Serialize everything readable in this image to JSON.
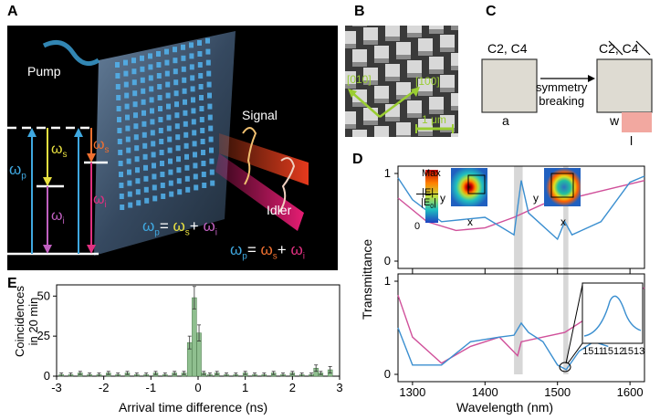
{
  "figure": {
    "panel_letters": [
      "A",
      "B",
      "C",
      "D",
      "E"
    ]
  },
  "panel_a": {
    "pump_label": "Pump",
    "signal_label": "Signal",
    "idler_label": "Idler",
    "omega_p": "ω",
    "omega_p_sub": "p",
    "omega_s": "ω",
    "omega_s_sub": "s",
    "omega_i": "ω",
    "omega_i_sub": "i",
    "eq1": [
      "ω",
      "p",
      "= ",
      "ω",
      "s",
      "+ ",
      "ω",
      "i"
    ],
    "eq2": [
      "ω",
      "p",
      "= ",
      "ω",
      "s",
      "+ ",
      "ω",
      "i"
    ],
    "colors": {
      "background": "#000000",
      "pump": "#3fa8e0",
      "signal": "#f07030",
      "idler": "#e03080",
      "yellow": "#e8e040",
      "purple": "#c060c0"
    }
  },
  "panel_b": {
    "dir1": "[010]",
    "dir2": "[100]",
    "scale": "1 μm",
    "colors": {
      "annotation": "#9acd32"
    }
  },
  "panel_c": {
    "left_symmetry": "C2, C4",
    "right_symmetry": "C2, C4",
    "arrow_label_line1": "symmetry",
    "arrow_label_line2": "breaking",
    "label_a": "a",
    "label_w": "w",
    "label_l": "l",
    "colors": {
      "square": "#dedbd2",
      "notch": "#f2a8a0"
    }
  },
  "panel_d": {
    "ylabel": "Transmittance",
    "xlabel": "Wavelength (nm)",
    "top_yticks": [
      "1",
      "0"
    ],
    "bottom_yticks": [
      "1",
      "0"
    ],
    "xticks": [
      "1300",
      "1400",
      "1500",
      "1600"
    ],
    "colorbar": {
      "max": "Max",
      "label_num": "|E|",
      "label_den": "|E",
      "label_den_sub": "0",
      "label_den_end": "|",
      "min": "0"
    },
    "axis_x": "x",
    "axis_y": "y",
    "inset_xticks": [
      "1511",
      "1512",
      "1513"
    ],
    "colors": {
      "blue": "#3b8fd0",
      "pink": "#d0509a",
      "band": "#bdbdbd"
    }
  },
  "panel_e": {
    "ylabel_line1": "Coincidences",
    "ylabel_line2": "in 20 min",
    "xlabel": "Arrival time difference (ns)",
    "yticks": [
      "0",
      "25",
      "50"
    ],
    "xticks": [
      "-3",
      "-2",
      "-1",
      "0",
      "1",
      "2",
      "3"
    ],
    "colors": {
      "bar": "#8fbf8f",
      "edge": "#4a7a4a"
    }
  },
  "chart_data": [
    {
      "type": "line",
      "title": "",
      "xlabel": "Wavelength (nm)",
      "ylabel": "Transmittance",
      "xlim": [
        1280,
        1620
      ],
      "ylim": [
        0,
        1
      ],
      "series": [
        {
          "name": "simulated symmetric (pink)",
          "x": [
            1280,
            1320,
            1360,
            1400,
            1440,
            1480,
            1520,
            1560,
            1600,
            1620
          ],
          "y": [
            0.72,
            0.45,
            0.35,
            0.38,
            0.5,
            0.65,
            0.72,
            0.8,
            0.88,
            0.92
          ]
        },
        {
          "name": "simulated broken (blue)",
          "x": [
            1280,
            1300,
            1340,
            1400,
            1440,
            1450,
            1460,
            1500,
            1510,
            1520,
            1560,
            1600,
            1620
          ],
          "y": [
            0.95,
            0.7,
            0.45,
            0.5,
            0.3,
            0.92,
            0.55,
            0.25,
            0.45,
            0.3,
            0.45,
            0.9,
            0.97
          ]
        }
      ]
    },
    {
      "type": "line",
      "title": "",
      "xlabel": "Wavelength (nm)",
      "ylabel": "Transmittance",
      "xlim": [
        1280,
        1620
      ],
      "ylim": [
        0,
        1
      ],
      "series": [
        {
          "name": "measured (pink)",
          "x": [
            1280,
            1300,
            1340,
            1380,
            1420,
            1445,
            1450,
            1480,
            1510,
            1540,
            1580,
            1620
          ],
          "y": [
            0.85,
            0.4,
            0.12,
            0.3,
            0.4,
            0.2,
            0.35,
            0.4,
            0.45,
            0.6,
            0.78,
            0.93
          ]
        },
        {
          "name": "measured (blue)",
          "x": [
            1280,
            1300,
            1340,
            1380,
            1420,
            1440,
            1450,
            1460,
            1480,
            1500,
            1512,
            1530,
            1550,
            1570
          ],
          "y": [
            0.5,
            0.1,
            0.1,
            0.35,
            0.4,
            0.42,
            0.55,
            0.45,
            0.35,
            0.1,
            0.05,
            0.25,
            0.35,
            0.3
          ]
        }
      ]
    },
    {
      "type": "bar",
      "title": "",
      "xlabel": "Arrival time difference (ns)",
      "ylabel": "Coincidences in 20 min",
      "xlim": [
        -3,
        3
      ],
      "ylim": [
        0,
        57
      ],
      "x": [
        -2.9,
        -2.7,
        -2.5,
        -2.3,
        -2.1,
        -1.9,
        -1.7,
        -1.5,
        -1.3,
        -1.1,
        -0.9,
        -0.7,
        -0.5,
        -0.3,
        -0.18,
        -0.08,
        0.02,
        0.12,
        0.25,
        0.4,
        0.6,
        0.8,
        1.0,
        1.2,
        1.4,
        1.6,
        1.8,
        2.0,
        2.2,
        2.4,
        2.5,
        2.6,
        2.8
      ],
      "values": [
        1,
        1,
        2,
        1,
        1,
        2,
        1,
        2,
        1,
        1,
        2,
        1,
        2,
        2,
        21,
        49,
        27,
        2,
        1,
        2,
        1,
        1,
        2,
        1,
        1,
        2,
        1,
        2,
        1,
        1,
        5,
        2,
        4
      ],
      "errors": [
        1,
        1,
        1,
        1,
        1,
        1,
        1,
        1,
        1,
        1,
        1,
        1,
        1,
        1,
        4,
        7,
        5,
        1,
        1,
        1,
        1,
        1,
        1,
        1,
        1,
        1,
        1,
        1,
        1,
        1,
        2,
        1,
        2
      ]
    }
  ]
}
